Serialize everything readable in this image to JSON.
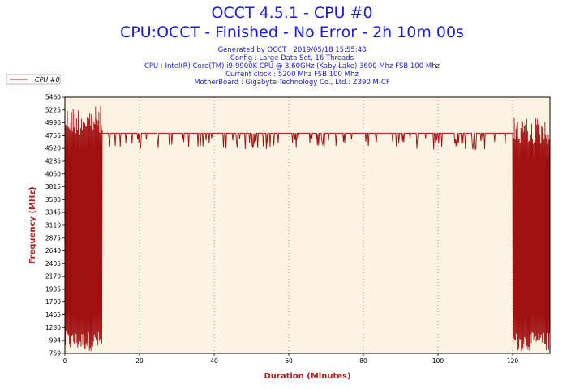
{
  "header": {
    "title": "OCCT 4.5.1 - CPU #0",
    "subtitle": "CPU:OCCT - Finished - No Error - 2h 10m 00s",
    "info_lines": [
      "Generated by OCCT : 2019/05/18 15:55:48",
      "Config : Large Data Set, 16 Threads",
      "CPU : Intel(R) Core(TM) i9-9900K CPU @ 3.60GHz (Kaby Lake) 3600 Mhz FSB 100 Mhz",
      "Current clock : 5200 Mhz FSB 100 Mhz",
      "MotherBoard : Gigabyte Technology Co., Ltd.: Z390 M-CF"
    ]
  },
  "colors": {
    "series": "#a01010",
    "plot_background": "#fdf3e3",
    "title": "#1a1ae6",
    "axis_label": "#b02020"
  },
  "chart_data": {
    "type": "line",
    "xlabel": "Duration (Minutes)",
    "ylabel": "Frequency (MHz)",
    "xlim": [
      0,
      130
    ],
    "ylim": [
      759,
      5460
    ],
    "x_ticks": [
      0,
      20,
      40,
      60,
      80,
      100,
      120
    ],
    "y_ticks": [
      759,
      994,
      1230,
      1465,
      1700,
      1935,
      2170,
      2405,
      2640,
      2875,
      3110,
      3345,
      3580,
      3815,
      4050,
      4285,
      4520,
      4755,
      4990,
      5225,
      5460
    ],
    "grid": true,
    "legend_position": "top-left",
    "series": [
      {
        "name": "CPU #0",
        "segments": [
          {
            "x_start": 0,
            "x_end": 10,
            "behavior": "oscillating",
            "low": 800,
            "high": 5300
          },
          {
            "x_start": 10,
            "x_end": 120,
            "behavior": "steady_with_dips",
            "value": 4800,
            "dip_low": 4500
          },
          {
            "x_start": 120,
            "x_end": 130,
            "behavior": "oscillating",
            "low": 800,
            "high": 5100
          }
        ]
      }
    ]
  }
}
